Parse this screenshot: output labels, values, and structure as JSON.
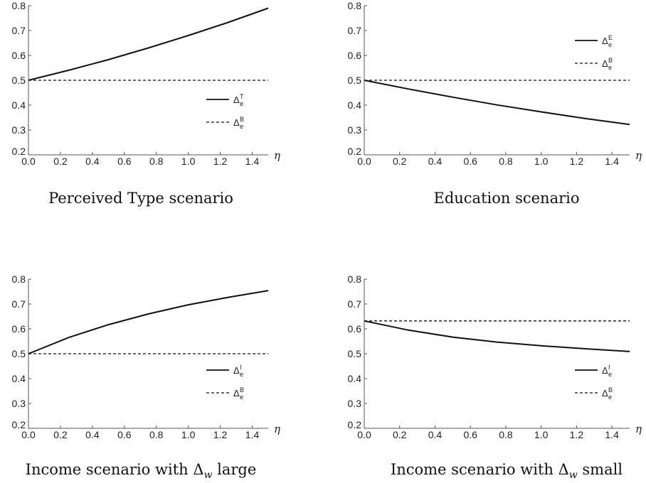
{
  "chart_data": [
    {
      "type": "line",
      "caption": "Perceived Type scenario",
      "xlabel": "η",
      "xlim": [
        0,
        1.5
      ],
      "ylim": [
        0.2,
        0.8
      ],
      "xticks": [
        "0.0",
        "0.2",
        "0.4",
        "0.6",
        "0.8",
        "1.0",
        "1.2",
        "1.4"
      ],
      "yticks": [
        "0.2",
        "0.3",
        "0.4",
        "0.5",
        "0.6",
        "0.7",
        "0.8"
      ],
      "legend_position": "right-middle",
      "series": [
        {
          "name": "Δ",
          "sup": "T",
          "sub": "e",
          "style": "solid",
          "x": [
            0,
            0.25,
            0.5,
            0.75,
            1.0,
            1.25,
            1.5
          ],
          "y": [
            0.5,
            0.54,
            0.583,
            0.63,
            0.68,
            0.733,
            0.79
          ]
        },
        {
          "name": "Δ",
          "sup": "B",
          "sub": "e",
          "style": "dashed",
          "x": [
            0,
            1.5
          ],
          "y": [
            0.5,
            0.5
          ]
        }
      ]
    },
    {
      "type": "line",
      "caption": "Education scenario",
      "xlabel": "η",
      "xlim": [
        0,
        1.5
      ],
      "ylim": [
        0.2,
        0.8
      ],
      "xticks": [
        "0.0",
        "0.2",
        "0.4",
        "0.6",
        "0.8",
        "1.0",
        "1.2",
        "1.4"
      ],
      "yticks": [
        "0.2",
        "0.3",
        "0.4",
        "0.5",
        "0.6",
        "0.7",
        "0.8"
      ],
      "legend_position": "top-right",
      "series": [
        {
          "name": "Δ",
          "sup": "E",
          "sub": "e",
          "style": "solid",
          "x": [
            0,
            0.25,
            0.5,
            0.75,
            1.0,
            1.25,
            1.5
          ],
          "y": [
            0.5,
            0.465,
            0.432,
            0.401,
            0.373,
            0.346,
            0.322
          ]
        },
        {
          "name": "Δ",
          "sup": "B",
          "sub": "e",
          "style": "dashed",
          "x": [
            0,
            1.5
          ],
          "y": [
            0.5,
            0.5
          ]
        }
      ]
    },
    {
      "type": "line",
      "caption": "Income scenario with Δ",
      "caption_sub": "w",
      "caption_tail": " large",
      "xlabel": "η",
      "xlim": [
        0,
        1.5
      ],
      "ylim": [
        0.2,
        0.8
      ],
      "xticks": [
        "0.0",
        "0.2",
        "0.4",
        "0.6",
        "0.8",
        "1.0",
        "1.2",
        "1.4"
      ],
      "yticks": [
        "0.2",
        "0.3",
        "0.4",
        "0.5",
        "0.6",
        "0.7",
        "0.8"
      ],
      "legend_position": "right-middle",
      "series": [
        {
          "name": "Δ",
          "sup": "I",
          "sub": "e",
          "style": "solid",
          "x": [
            0,
            0.25,
            0.5,
            0.75,
            1.0,
            1.25,
            1.5
          ],
          "y": [
            0.5,
            0.565,
            0.617,
            0.66,
            0.697,
            0.727,
            0.754
          ]
        },
        {
          "name": "Δ",
          "sup": "B",
          "sub": "e",
          "style": "dashed",
          "x": [
            0,
            1.5
          ],
          "y": [
            0.5,
            0.5
          ]
        }
      ]
    },
    {
      "type": "line",
      "caption": "Income scenario with Δ",
      "caption_sub": "w",
      "caption_tail": " small",
      "xlabel": "η",
      "xlim": [
        0,
        1.5
      ],
      "ylim": [
        0.2,
        0.8
      ],
      "xticks": [
        "0.0",
        "0.2",
        "0.4",
        "0.6",
        "0.8",
        "1.0",
        "1.2",
        "1.4"
      ],
      "yticks": [
        "0.2",
        "0.3",
        "0.4",
        "0.5",
        "0.6",
        "0.7",
        "0.8"
      ],
      "legend_position": "right-middle",
      "series": [
        {
          "name": "Δ",
          "sup": "I",
          "sub": "e",
          "style": "solid",
          "x": [
            0,
            0.25,
            0.5,
            0.75,
            1.0,
            1.25,
            1.5
          ],
          "y": [
            0.632,
            0.595,
            0.567,
            0.547,
            0.532,
            0.52,
            0.509
          ]
        },
        {
          "name": "Δ",
          "sup": "B",
          "sub": "e",
          "style": "dashed",
          "x": [
            0,
            1.5
          ],
          "y": [
            0.632,
            0.632
          ]
        }
      ]
    }
  ]
}
